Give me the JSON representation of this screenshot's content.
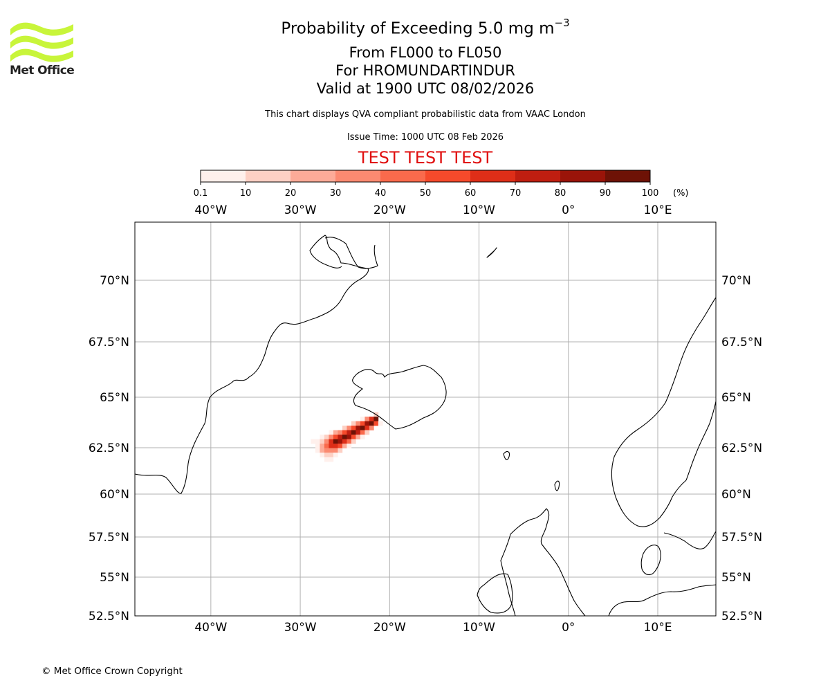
{
  "logo": {
    "brand": "Met Office",
    "color": "#c8f53a",
    "icon": "met-office-waves-icon"
  },
  "title": {
    "main_prefix": "Probability of Exceeding 5.0 mg m",
    "main_exponent": "−3",
    "flight_levels": "From FL000 to FL050",
    "volcano": "For HROMUNDARTINDUR",
    "valid": "Valid at 1900 UTC 08/02/2026"
  },
  "subtitle": "This chart displays QVA compliant probabilistic data from VAAC London",
  "issue_time": "Issue Time: 1000 UTC 08 Feb 2026",
  "test_banner": {
    "text": "TEST TEST TEST",
    "color": "#e01010"
  },
  "copyright": "© Met Office Crown Copyright",
  "colorbar": {
    "unit": "(%)",
    "ticks": [
      "0.1",
      "10",
      "20",
      "30",
      "40",
      "50",
      "60",
      "70",
      "80",
      "90",
      "100"
    ],
    "colors": [
      "#fff0ec",
      "#fdd0c4",
      "#fcab98",
      "#fb8a71",
      "#fa6a4c",
      "#f64a2b",
      "#de2e18",
      "#bf1e10",
      "#9a1409",
      "#6e1206"
    ]
  },
  "map": {
    "lon_range": [
      -48.5,
      16.5
    ],
    "lat_range": [
      52.5,
      72.7
    ],
    "lon_ticks": [
      {
        "value": -40,
        "label": "40°W"
      },
      {
        "value": -30,
        "label": "30°W"
      },
      {
        "value": -20,
        "label": "20°W"
      },
      {
        "value": -10,
        "label": "10°W"
      },
      {
        "value": 0,
        "label": "0°"
      },
      {
        "value": 10,
        "label": "10°E"
      }
    ],
    "lat_ticks": [
      {
        "value": 70,
        "label": "70°N"
      },
      {
        "value": 67.5,
        "label": "67.5°N"
      },
      {
        "value": 65,
        "label": "65°N"
      },
      {
        "value": 62.5,
        "label": "62.5°N"
      },
      {
        "value": 60,
        "label": "60°N"
      },
      {
        "value": 57.5,
        "label": "57.5°N"
      },
      {
        "value": 55,
        "label": "55°N"
      },
      {
        "value": 52.5,
        "label": "52.5°N"
      }
    ],
    "plume_axis": {
      "start": [
        -21.5,
        63.9
      ],
      "end": [
        -27.5,
        62.4
      ]
    }
  }
}
